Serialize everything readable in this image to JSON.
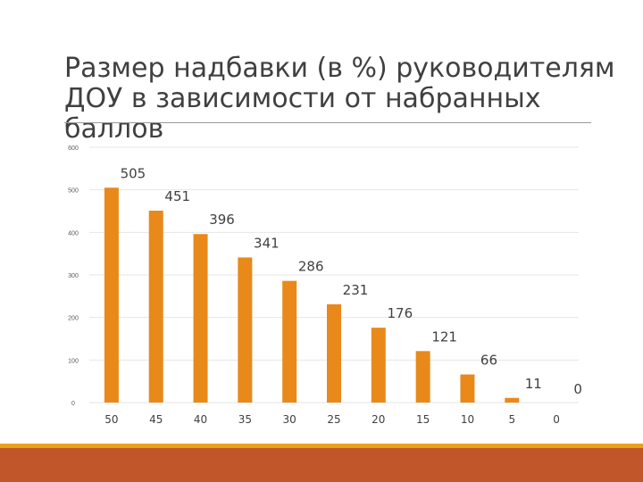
{
  "slide": {
    "title_line1": "Размер надбавки (в %) руководителям",
    "title_line2": "ДОУ в зависимости от набранных баллов"
  },
  "colors": {
    "bar": "#e8891a",
    "title_rule": "#9a9a9a",
    "gridline": "#e6e6e6",
    "footer_gold": "#e8a31c",
    "footer_red": "#c0562a"
  },
  "chart_data": {
    "type": "bar",
    "title": "",
    "xlabel": "",
    "ylabel": "",
    "categories": [
      "50",
      "45",
      "40",
      "35",
      "30",
      "25",
      "20",
      "15",
      "10",
      "5",
      "0"
    ],
    "values": [
      505,
      451,
      396,
      341,
      286,
      231,
      176,
      121,
      66,
      11,
      0
    ],
    "data_labels": [
      "505",
      "451",
      "396",
      "341",
      "286",
      "231",
      "176",
      "121",
      "66",
      "11",
      "0"
    ],
    "yticks": [
      0,
      100,
      200,
      300,
      400,
      500,
      600
    ],
    "ylim": [
      0,
      600
    ],
    "grid": true,
    "legend": "none"
  }
}
